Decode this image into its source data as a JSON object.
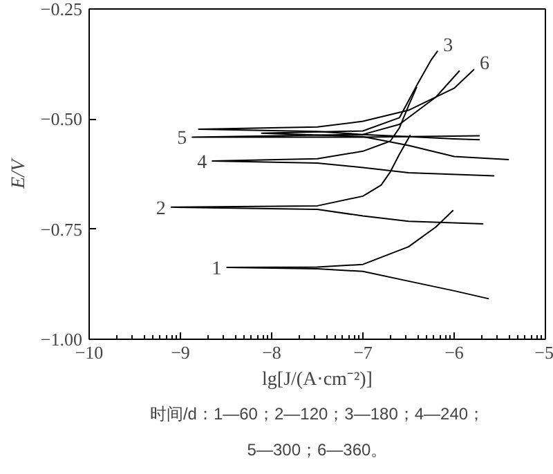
{
  "chart_data": {
    "type": "line",
    "xlabel": "lg[J/(A·cm⁻²)]",
    "ylabel": "E/V",
    "xlim": [
      -10,
      -5
    ],
    "ylim": [
      -1.0,
      -0.25
    ],
    "xticks": [
      -10,
      -9,
      -8,
      -7,
      -6,
      -5
    ],
    "yticks": [
      {
        "value": -1.0,
        "label": "−1.00"
      },
      {
        "value": -0.75,
        "label": "−0.75"
      },
      {
        "value": -0.5,
        "label": "−0.50"
      },
      {
        "value": -0.25,
        "label": "−0.25"
      }
    ],
    "grid": false,
    "marker": "none",
    "line_style": "solid",
    "series": [
      {
        "color": "#000000",
        "x": [
          -6.01,
          -6.2,
          -6.5,
          -7.0,
          -7.5,
          -8.49,
          -7.5,
          -7.0,
          -6.5,
          -6.0,
          -5.62
        ],
        "values": [
          -0.707,
          -0.745,
          -0.79,
          -0.83,
          -0.836,
          -0.837,
          -0.84,
          -0.846,
          -0.868,
          -0.89,
          -0.908
        ]
      },
      {
        "color": "#000000",
        "x": [
          -6.48,
          -6.6,
          -6.7,
          -6.8,
          -7.0,
          -7.5,
          -9.1,
          -7.5,
          -7.0,
          -6.5,
          -5.68
        ],
        "values": [
          -0.536,
          -0.58,
          -0.62,
          -0.65,
          -0.675,
          -0.697,
          -0.7,
          -0.705,
          -0.72,
          -0.732,
          -0.738
        ]
      },
      {
        "color": "#000000",
        "x": [
          -6.18,
          -6.25,
          -6.4,
          -6.6,
          -7.0,
          -8.11,
          -7.0,
          -6.5,
          -6.0,
          -5.4
        ],
        "values": [
          -0.345,
          -0.365,
          -0.42,
          -0.497,
          -0.527,
          -0.532,
          -0.54,
          -0.56,
          -0.585,
          -0.592
        ]
      },
      {
        "color": "#000000",
        "x": [
          -6.41,
          -6.5,
          -6.6,
          -6.7,
          -7.0,
          -7.5,
          -8.65,
          -7.5,
          -7.0,
          -6.5,
          -5.56
        ],
        "values": [
          -0.427,
          -0.47,
          -0.52,
          -0.55,
          -0.573,
          -0.59,
          -0.595,
          -0.6,
          -0.61,
          -0.622,
          -0.629
        ]
      },
      {
        "color": "#000000",
        "x": [
          -5.94,
          -6.2,
          -6.6,
          -7.0,
          -8.87,
          -7.0,
          -6.5,
          -5.72
        ],
        "values": [
          -0.39,
          -0.45,
          -0.512,
          -0.535,
          -0.541,
          -0.541,
          -0.54,
          -0.538
        ]
      },
      {
        "color": "#000000",
        "x": [
          -5.78,
          -6.0,
          -6.5,
          -7.0,
          -7.5,
          -8.8,
          -7.5,
          -7.0,
          -6.5,
          -6.0,
          -5.72
        ],
        "values": [
          -0.387,
          -0.43,
          -0.48,
          -0.505,
          -0.518,
          -0.523,
          -0.528,
          -0.535,
          -0.54,
          -0.545,
          -0.547
        ]
      }
    ],
    "annotations": [
      {
        "text": "1",
        "x": -8.49,
        "y": -0.837
      },
      {
        "text": "2",
        "x": -9.1,
        "y": -0.7
      },
      {
        "text": "3",
        "x": -6.18,
        "y": -0.345
      },
      {
        "text": "4",
        "x": -8.65,
        "y": -0.595
      },
      {
        "text": "5",
        "x": -8.87,
        "y": -0.541
      },
      {
        "text": "6",
        "x": -5.78,
        "y": -0.387
      },
      "时间/d：1—60；2—120；3—180；4—240；",
      "5—300；6—360。"
    ]
  }
}
